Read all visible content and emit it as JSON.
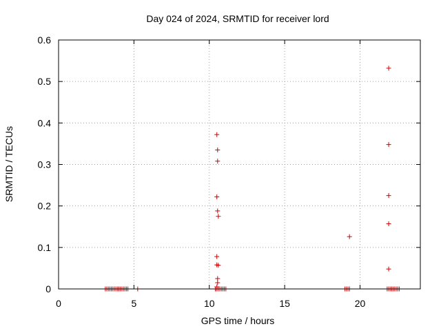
{
  "chart_data": {
    "type": "scatter",
    "title": "Day 024 of 2024, SRMTID for receiver lord",
    "xlabel": "GPS time / hours",
    "ylabel": "SRMTID / TECUs",
    "xlim": [
      0,
      24
    ],
    "ylim": [
      0,
      0.6
    ],
    "xticks": [
      0,
      5,
      10,
      15,
      20
    ],
    "yticks": [
      0,
      0.1,
      0.2,
      0.3,
      0.4,
      0.5,
      0.6
    ],
    "xtick_labels": [
      "0",
      "5",
      "10",
      "15",
      "20"
    ],
    "ytick_labels": [
      "0",
      "0.1",
      "0.2",
      "0.3",
      "0.4",
      "0.5",
      "0.6"
    ],
    "grid": true,
    "marker": "+",
    "color": "#cc0000",
    "series": [
      {
        "name": "SRMTID",
        "points": [
          [
            10.5,
            0.372
          ],
          [
            10.55,
            0.335
          ],
          [
            10.55,
            0.308
          ],
          [
            10.5,
            0.222
          ],
          [
            10.55,
            0.188
          ],
          [
            10.6,
            0.175
          ],
          [
            10.5,
            0.078
          ],
          [
            10.5,
            0.058
          ],
          [
            10.6,
            0.057
          ],
          [
            10.55,
            0.025
          ],
          [
            10.55,
            0.015
          ],
          [
            10.5,
            0.005
          ],
          [
            19.3,
            0.126
          ],
          [
            21.9,
            0.532
          ],
          [
            21.9,
            0.348
          ],
          [
            21.9,
            0.225
          ],
          [
            21.9,
            0.157
          ],
          [
            21.9,
            0.048
          ],
          [
            3.1,
            0
          ],
          [
            3.2,
            0
          ],
          [
            3.3,
            0
          ],
          [
            3.4,
            0
          ],
          [
            3.5,
            0
          ],
          [
            3.6,
            0
          ],
          [
            3.7,
            0
          ],
          [
            3.8,
            0
          ],
          [
            3.9,
            0
          ],
          [
            4.0,
            0
          ],
          [
            4.1,
            0
          ],
          [
            4.2,
            0
          ],
          [
            4.3,
            0
          ],
          [
            4.4,
            0
          ],
          [
            4.5,
            0
          ],
          [
            4.6,
            0
          ],
          [
            5.25,
            0
          ],
          [
            10.4,
            0
          ],
          [
            10.5,
            0
          ],
          [
            10.6,
            0
          ],
          [
            10.7,
            0
          ],
          [
            10.8,
            0
          ],
          [
            10.9,
            0
          ],
          [
            11.0,
            0
          ],
          [
            11.1,
            0
          ],
          [
            19.0,
            0
          ],
          [
            19.1,
            0
          ],
          [
            19.2,
            0
          ],
          [
            19.3,
            0
          ],
          [
            21.8,
            0
          ],
          [
            21.9,
            0
          ],
          [
            22.0,
            0
          ],
          [
            22.1,
            0
          ],
          [
            22.2,
            0
          ],
          [
            22.3,
            0
          ],
          [
            22.4,
            0
          ],
          [
            22.5,
            0
          ],
          [
            22.6,
            0
          ]
        ]
      }
    ]
  }
}
